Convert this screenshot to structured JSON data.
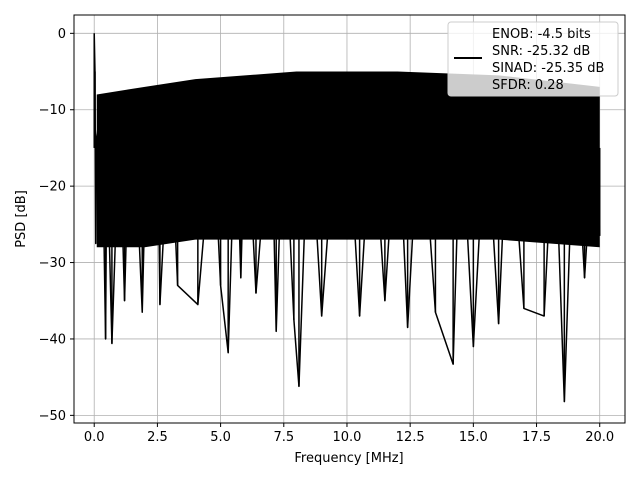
{
  "chart_data": {
    "type": "line",
    "title": "",
    "xlabel": "Frequency [MHz]",
    "ylabel": "PSD [dB]",
    "xlim": [
      -0.8,
      21.0
    ],
    "ylim": [
      -51.0,
      2.4
    ],
    "x_ticks": [
      0.0,
      2.5,
      5.0,
      7.5,
      10.0,
      12.5,
      15.0,
      17.5,
      20.0
    ],
    "x_tick_labels": [
      "0.0",
      "2.5",
      "5.0",
      "7.5",
      "10.0",
      "12.5",
      "15.0",
      "17.5",
      "20.0"
    ],
    "y_ticks": [
      0,
      -10,
      -20,
      -30,
      -40,
      -50
    ],
    "y_tick_labels": [
      "0",
      "−10",
      "−20",
      "−30",
      "−40",
      "−50"
    ],
    "grid": true,
    "legend_position": "top-right",
    "legend": [
      "ENOB: -4.5 bits",
      "SNR: -25.32 dB",
      "SINAD: -25.35 dB",
      "SFDR: 0.28"
    ],
    "series": [
      {
        "color": "#000000",
        "x": [
          0.0,
          0.03,
          0.06,
          0.1,
          0.3,
          0.45,
          0.5,
          0.7,
          1.0,
          1.2,
          1.4,
          1.6,
          1.9,
          2.1,
          2.5,
          2.6,
          3.0,
          3.3,
          4.1,
          4.7,
          5.0,
          5.3,
          5.6,
          5.8,
          6.0,
          6.4,
          7.0,
          7.2,
          7.5,
          7.9,
          8.1,
          8.5,
          9.0,
          9.6,
          10.0,
          10.5,
          11.0,
          11.5,
          12.0,
          12.4,
          12.9,
          13.5,
          14.2,
          14.5,
          15.0,
          15.5,
          16.0,
          16.4,
          17.0,
          17.8,
          18.2,
          18.6,
          19.0,
          19.4,
          19.8,
          20.0
        ],
        "y": [
          0.0,
          -5.0,
          -27.5,
          -13.5,
          -9.0,
          -40.0,
          -14.0,
          -40.6,
          -11.0,
          -35.0,
          -10.0,
          -13.0,
          -36.5,
          -9.0,
          -9.5,
          -35.5,
          -10.0,
          -33.0,
          -35.5,
          -12.0,
          -33.0,
          -41.8,
          -9.5,
          -32.0,
          -7.5,
          -34.0,
          -9.0,
          -39.0,
          -8.5,
          -37.5,
          -46.2,
          -9.0,
          -37.0,
          -10.0,
          -8.0,
          -37.0,
          -9.5,
          -35.0,
          -9.0,
          -38.5,
          -8.0,
          -36.5,
          -43.3,
          -9.5,
          -41.0,
          -10.0,
          -38.0,
          -8.0,
          -36.0,
          -37.0,
          -10.0,
          -48.2,
          -8.5,
          -32.0,
          -10.5,
          -26.5
        ]
      }
    ]
  }
}
